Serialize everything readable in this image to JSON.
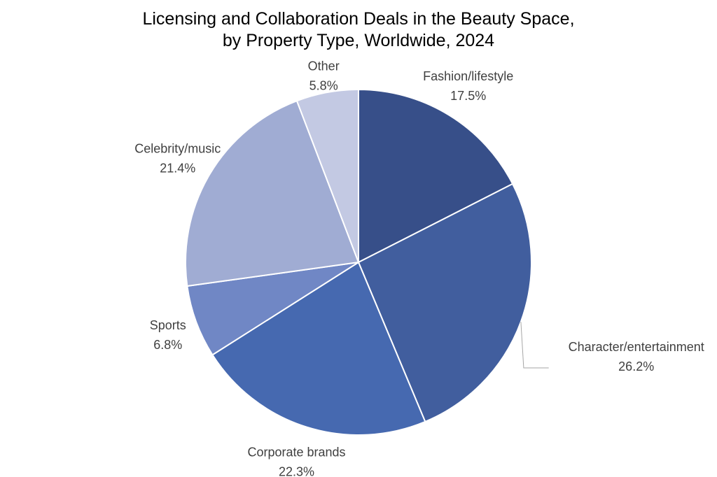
{
  "chart_data": {
    "type": "pie",
    "title_lines": [
      "Licensing and Collaboration Deals in the Beauty Space,",
      "by Property Type, Worldwide, 2024"
    ],
    "slices": [
      {
        "label": "Fashion/lifestyle",
        "value": 17.5,
        "value_label": "17.5%",
        "color": "#374f89"
      },
      {
        "label": "Character/entertainment",
        "value": 26.2,
        "value_label": "26.2%",
        "color": "#415e9e"
      },
      {
        "label": "Corporate brands",
        "value": 22.3,
        "value_label": "22.3%",
        "color": "#4669b0"
      },
      {
        "label": "Sports",
        "value": 6.8,
        "value_label": "6.8%",
        "color": "#7087c5"
      },
      {
        "label": "Celebrity/music",
        "value": 21.4,
        "value_label": "21.4%",
        "color": "#a0acd3"
      },
      {
        "label": "Other",
        "value": 5.8,
        "value_label": "5.8%",
        "color": "#c3c9e3"
      }
    ],
    "start_angle": "12 o'clock",
    "direction": "clockwise",
    "legend": "none",
    "label_color": "#404040",
    "slice_border_color": "#ffffff"
  }
}
